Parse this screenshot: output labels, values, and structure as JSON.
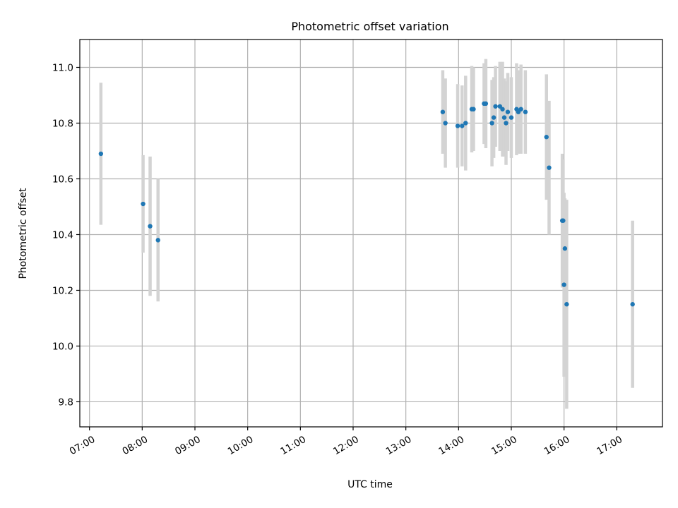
{
  "chart_data": {
    "type": "scatter",
    "title": "Photometric offset variation",
    "xlabel": "UTC time",
    "ylabel": "Photometric offset",
    "x_ticks": [
      "07:00",
      "08:00",
      "09:00",
      "10:00",
      "11:00",
      "12:00",
      "13:00",
      "14:00",
      "15:00",
      "16:00",
      "17:00"
    ],
    "y_ticks": [
      "9.8",
      "10.0",
      "10.2",
      "10.4",
      "10.6",
      "10.8",
      "11.0"
    ],
    "xlim": [
      "06:49",
      "17:52"
    ],
    "ylim": [
      9.71,
      11.1
    ],
    "grid": true,
    "colors": {
      "point": "#1f77b4",
      "errorbar": "#d3d3d3",
      "grid": "#b0b0b0"
    },
    "points": [
      {
        "x": "07:13",
        "y": 10.69,
        "err": 0.255
      },
      {
        "x": "08:01",
        "y": 10.51,
        "err": 0.175
      },
      {
        "x": "08:09",
        "y": 10.43,
        "err": 0.25
      },
      {
        "x": "08:18",
        "y": 10.38,
        "err": 0.22
      },
      {
        "x": "13:42",
        "y": 10.84,
        "err": 0.15
      },
      {
        "x": "13:45",
        "y": 10.8,
        "err": 0.16
      },
      {
        "x": "13:59",
        "y": 10.79,
        "err": 0.15
      },
      {
        "x": "14:04",
        "y": 10.79,
        "err": 0.145
      },
      {
        "x": "14:08",
        "y": 10.8,
        "err": 0.17
      },
      {
        "x": "14:15",
        "y": 10.85,
        "err": 0.155
      },
      {
        "x": "14:17",
        "y": 10.85,
        "err": 0.15
      },
      {
        "x": "14:29",
        "y": 10.87,
        "err": 0.145
      },
      {
        "x": "14:31",
        "y": 10.87,
        "err": 0.16
      },
      {
        "x": "14:38",
        "y": 10.8,
        "err": 0.155
      },
      {
        "x": "14:40",
        "y": 10.82,
        "err": 0.145
      },
      {
        "x": "14:42",
        "y": 10.86,
        "err": 0.145
      },
      {
        "x": "14:47",
        "y": 10.86,
        "err": 0.16
      },
      {
        "x": "14:50",
        "y": 10.85,
        "err": 0.17
      },
      {
        "x": "14:52",
        "y": 10.82,
        "err": 0.14
      },
      {
        "x": "14:54",
        "y": 10.8,
        "err": 0.15
      },
      {
        "x": "14:56",
        "y": 10.84,
        "err": 0.14
      },
      {
        "x": "15:00",
        "y": 10.82,
        "err": 0.145
      },
      {
        "x": "15:06",
        "y": 10.85,
        "err": 0.165
      },
      {
        "x": "15:08",
        "y": 10.84,
        "err": 0.15
      },
      {
        "x": "15:11",
        "y": 10.85,
        "err": 0.16
      },
      {
        "x": "15:16",
        "y": 10.84,
        "err": 0.15
      },
      {
        "x": "15:40",
        "y": 10.75,
        "err": 0.225
      },
      {
        "x": "15:43",
        "y": 10.64,
        "err": 0.24
      },
      {
        "x": "15:58",
        "y": 10.45,
        "err": 0.24
      },
      {
        "x": "15:59",
        "y": 10.45,
        "err": 0.22
      },
      {
        "x": "16:00",
        "y": 10.22,
        "err": 0.33
      },
      {
        "x": "16:01",
        "y": 10.35,
        "err": 0.18
      },
      {
        "x": "16:03",
        "y": 10.15,
        "err": 0.375
      },
      {
        "x": "17:18",
        "y": 10.15,
        "err": 0.3
      }
    ]
  }
}
